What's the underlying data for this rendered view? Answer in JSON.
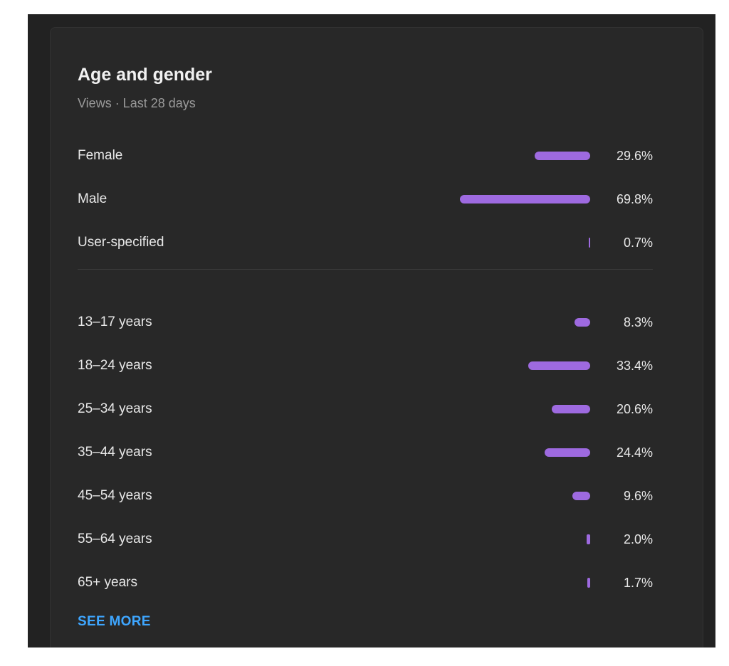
{
  "card": {
    "title": "Age and gender",
    "subtitle": "Views · Last 28 days",
    "see_more_label": "SEE MORE"
  },
  "chart_data": {
    "type": "bar",
    "orientation": "horizontal",
    "bar_color": "#9e6ae0",
    "groups": [
      {
        "name": "gender",
        "categories": [
          "Female",
          "Male",
          "User-specified"
        ],
        "values": [
          29.6,
          69.8,
          0.7
        ],
        "labels": [
          "29.6%",
          "69.8%",
          "0.7%"
        ]
      },
      {
        "name": "age",
        "categories": [
          "13–17 years",
          "18–24 years",
          "25–34 years",
          "35–44 years",
          "45–54 years",
          "55–64 years",
          "65+ years"
        ],
        "values": [
          8.3,
          33.4,
          20.6,
          24.4,
          9.6,
          2.0,
          1.7
        ],
        "labels": [
          "8.3%",
          "33.4%",
          "20.6%",
          "24.4%",
          "9.6%",
          "2.0%",
          "1.7%"
        ]
      }
    ]
  }
}
